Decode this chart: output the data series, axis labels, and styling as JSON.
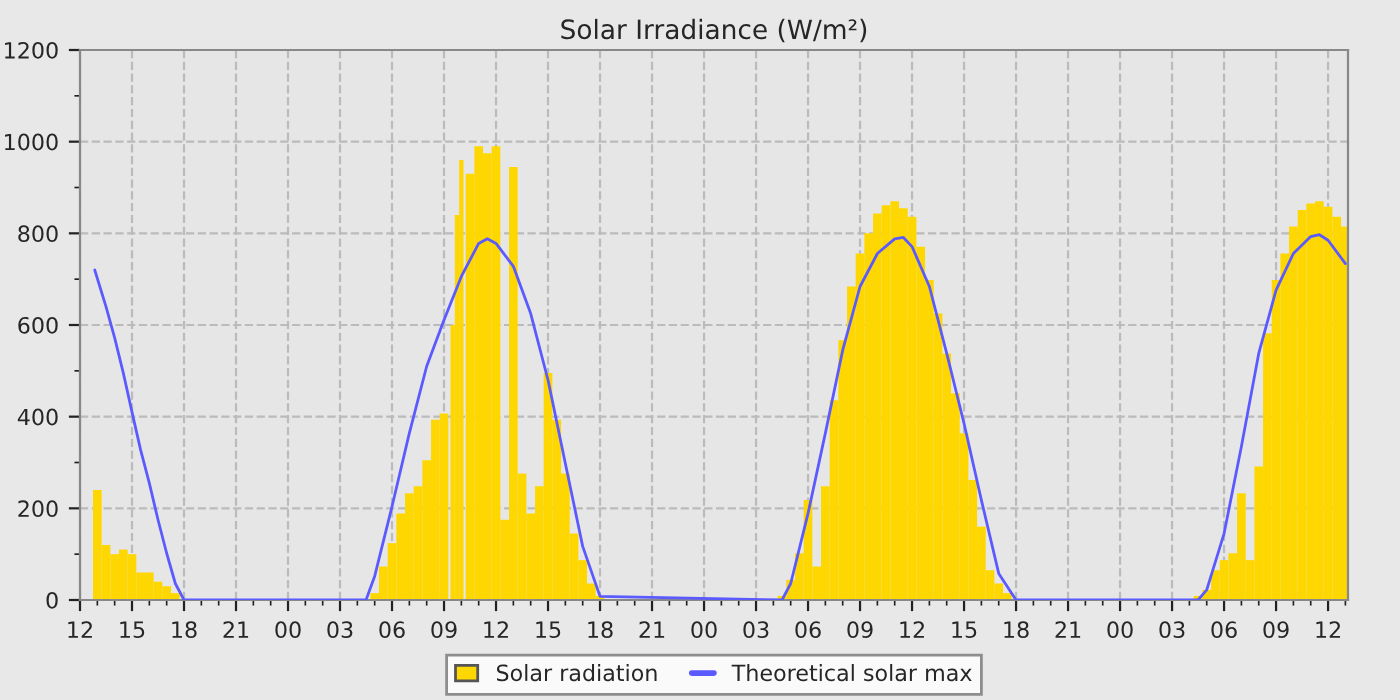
{
  "chart_data": {
    "type": "bar",
    "title": "Solar Irradiance (W/m²)",
    "series": [
      {
        "name": "Solar radiation",
        "color": "#ffd700",
        "x": [
          13.0,
          13.5,
          14.0,
          14.5,
          15.0,
          15.5,
          16.0,
          16.5,
          17.0,
          17.5,
          29.0,
          29.5,
          30.0,
          30.5,
          31.0,
          31.5,
          32.0,
          32.5,
          33.0,
          33.5,
          33.75,
          34.0,
          34.5,
          35.0,
          35.5,
          36.0,
          36.5,
          37.0,
          37.5,
          38.0,
          38.5,
          39.0,
          39.5,
          40.0,
          40.5,
          41.0,
          41.5,
          42.0,
          52.5,
          53.0,
          53.5,
          54.0,
          54.5,
          55.0,
          55.5,
          56.0,
          56.5,
          57.0,
          57.5,
          58.0,
          58.5,
          59.0,
          59.5,
          60.0,
          60.5,
          61.0,
          61.5,
          62.0,
          62.5,
          63.0,
          63.5,
          64.0,
          64.5,
          65.0,
          65.5,
          76.5,
          77.0,
          77.5,
          78.0,
          78.5,
          79.0,
          79.5,
          80.0,
          80.5,
          81.0,
          81.5,
          82.0,
          82.5,
          83.0,
          83.5,
          84.0,
          84.5,
          85.0
        ],
        "values": [
          240,
          120,
          100,
          110,
          100,
          60,
          60,
          40,
          30,
          15,
          15,
          73,
          124,
          189,
          233,
          248,
          305,
          393,
          407,
          600,
          840,
          960,
          930,
          990,
          975,
          990,
          175,
          945,
          276,
          189,
          248,
          495,
          393,
          276,
          145,
          87,
          36,
          9,
          9,
          44,
          102,
          218,
          73,
          248,
          436,
          567,
          684,
          756,
          800,
          843,
          861,
          870,
          855,
          836,
          771,
          698,
          625,
          538,
          451,
          364,
          262,
          160,
          65,
          36,
          15,
          9,
          22,
          65,
          87,
          102,
          233,
          87,
          291,
          582,
          698,
          756,
          815,
          851,
          865,
          870,
          858,
          836,
          815
        ]
      },
      {
        "name": "Theoretical solar max",
        "type": "line",
        "color": "#5a5aff",
        "x": [
          12.85,
          13.5,
          14.0,
          14.5,
          15.0,
          15.5,
          16.0,
          16.5,
          17.0,
          17.5,
          18.0,
          28.5,
          29.0,
          30.0,
          31.0,
          32.0,
          33.0,
          34.0,
          35.0,
          35.5,
          36.0,
          37.0,
          38.0,
          39.0,
          40.0,
          41.0,
          42.0,
          52.5,
          53.0,
          54.0,
          55.0,
          56.0,
          57.0,
          58.0,
          59.0,
          59.5,
          60.0,
          61.0,
          62.0,
          63.0,
          64.0,
          65.0,
          66.0,
          76.5,
          77.0,
          78.0,
          79.0,
          80.0,
          81.0,
          82.0,
          83.0,
          83.5,
          84.0,
          85.0
        ],
        "values": [
          720,
          640,
          572,
          495,
          410,
          327,
          255,
          175,
          102,
          36,
          0,
          0,
          52,
          204,
          364,
          510,
          611,
          706,
          778,
          788,
          778,
          728,
          625,
          480,
          298,
          117,
          8,
          0,
          36,
          189,
          364,
          545,
          684,
          756,
          788,
          791,
          771,
          684,
          538,
          385,
          218,
          58,
          0,
          0,
          22,
          145,
          335,
          538,
          676,
          756,
          793,
          797,
          785,
          734
        ]
      }
    ],
    "xlim": [
      12,
      85.15
    ],
    "xticks": [
      {
        "value": 12,
        "label": "12"
      },
      {
        "value": 15,
        "label": "15"
      },
      {
        "value": 18,
        "label": "18"
      },
      {
        "value": 21,
        "label": "21"
      },
      {
        "value": 24,
        "label": "00"
      },
      {
        "value": 27,
        "label": "03"
      },
      {
        "value": 30,
        "label": "06"
      },
      {
        "value": 33,
        "label": "09"
      },
      {
        "value": 36,
        "label": "12"
      },
      {
        "value": 39,
        "label": "15"
      },
      {
        "value": 42,
        "label": "18"
      },
      {
        "value": 45,
        "label": "21"
      },
      {
        "value": 48,
        "label": "00"
      },
      {
        "value": 51,
        "label": "03"
      },
      {
        "value": 54,
        "label": "06"
      },
      {
        "value": 57,
        "label": "09"
      },
      {
        "value": 60,
        "label": "12"
      },
      {
        "value": 63,
        "label": "15"
      },
      {
        "value": 66,
        "label": "18"
      },
      {
        "value": 69,
        "label": "21"
      },
      {
        "value": 72,
        "label": "00"
      },
      {
        "value": 75,
        "label": "03"
      },
      {
        "value": 78,
        "label": "06"
      },
      {
        "value": 81,
        "label": "09"
      },
      {
        "value": 84,
        "label": "12"
      }
    ],
    "ylim": [
      0,
      1200
    ],
    "yticks": [
      0,
      200,
      400,
      600,
      800,
      1000,
      1200
    ],
    "grid": true,
    "legend": "bottom"
  }
}
